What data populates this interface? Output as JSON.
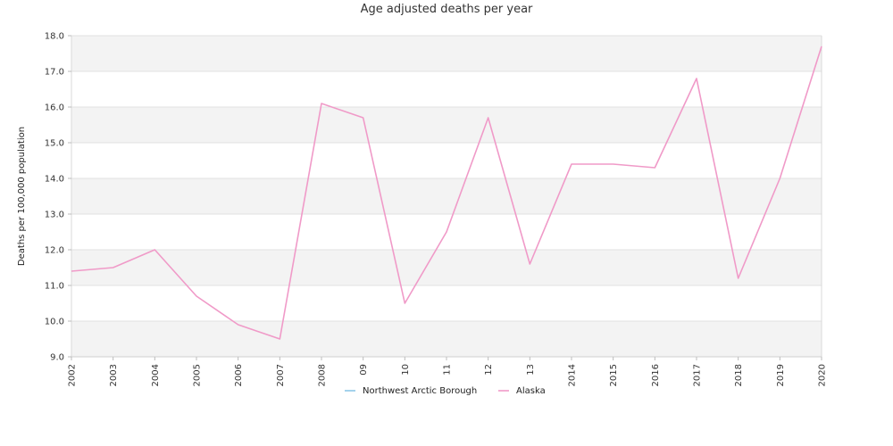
{
  "chart_data": {
    "type": "line",
    "title": "Age adjusted deaths per year",
    "ylabel": "Deaths per 100,000 population",
    "xlabel": "",
    "categories": [
      "2002",
      "2003",
      "2004",
      "2005",
      "2006",
      "2007",
      "2008",
      "09",
      "10",
      "11",
      "12",
      "13",
      "2014",
      "2015",
      "2016",
      "2017",
      "2018",
      "2019",
      "2020"
    ],
    "ylim": [
      9.0,
      18.0
    ],
    "yticks": [
      "9.0",
      "10.0",
      "11.0",
      "12.0",
      "13.0",
      "14.0",
      "15.0",
      "16.0",
      "17.0",
      "18.0"
    ],
    "grid": "alternating horizontal bands",
    "legend_position": "bottom-center",
    "series": [
      {
        "name": "Northwest Arctic Borough",
        "color": "#8ec6e8",
        "values": [
          null,
          null,
          null,
          null,
          null,
          null,
          null,
          null,
          null,
          null,
          null,
          null,
          null,
          null,
          null,
          null,
          null,
          null,
          null
        ]
      },
      {
        "name": "Alaska",
        "color": "#f09ac8",
        "values": [
          11.4,
          11.5,
          12.0,
          10.7,
          9.9,
          9.5,
          16.1,
          15.7,
          10.5,
          12.5,
          15.7,
          11.6,
          14.4,
          14.4,
          14.3,
          16.8,
          11.2,
          14.0,
          17.7
        ]
      }
    ]
  }
}
